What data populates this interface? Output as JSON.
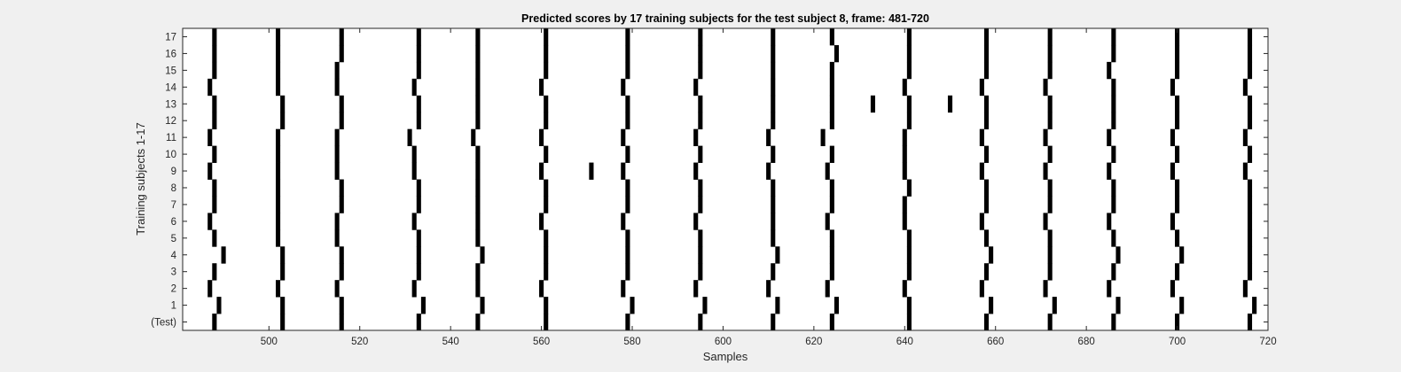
{
  "chart_data": {
    "type": "heatmap",
    "title": "Predicted scores by 17 training subjects for the test subject 8, frame: 481-720",
    "xlabel": "Samples",
    "ylabel": "Training subjects 1-17",
    "xlim": [
      481,
      720
    ],
    "x_ticks": [
      500,
      520,
      540,
      560,
      580,
      600,
      620,
      640,
      660,
      680,
      700,
      720
    ],
    "rows": [
      "(Test)",
      "1",
      "2",
      "3",
      "4",
      "5",
      "6",
      "7",
      "8",
      "9",
      "10",
      "11",
      "12",
      "13",
      "14",
      "15",
      "16",
      "17"
    ],
    "mark_color": "#000000",
    "background_color": "#ffffff",
    "grid": false,
    "marks": [
      {
        "row": 0,
        "x": [
          488,
          503,
          516,
          533,
          546,
          561,
          579,
          595,
          611,
          624,
          641,
          658,
          672,
          686,
          700,
          716
        ]
      },
      {
        "row": 1,
        "x": [
          489,
          503,
          516,
          534,
          547,
          561,
          580,
          596,
          612,
          625,
          641,
          659,
          673,
          687,
          701,
          717
        ]
      },
      {
        "row": 2,
        "x": [
          487,
          502,
          515,
          532,
          546,
          560,
          578,
          594,
          610,
          623,
          640,
          657,
          671,
          685,
          699,
          715
        ]
      },
      {
        "row": 3,
        "x": [
          488,
          503,
          516,
          533,
          546,
          561,
          579,
          595,
          611,
          624,
          641,
          658,
          672,
          686,
          700,
          716
        ]
      },
      {
        "row": 4,
        "x": [
          490,
          503,
          516,
          533,
          547,
          561,
          579,
          595,
          612,
          624,
          641,
          659,
          672,
          687,
          701,
          716
        ]
      },
      {
        "row": 5,
        "x": [
          488,
          502,
          515,
          533,
          546,
          561,
          579,
          595,
          611,
          624,
          641,
          658,
          672,
          686,
          700,
          716
        ]
      },
      {
        "row": 6,
        "x": [
          487,
          502,
          515,
          532,
          546,
          560,
          578,
          594,
          611,
          623,
          640,
          657,
          671,
          685,
          699,
          716
        ]
      },
      {
        "row": 7,
        "x": [
          488,
          502,
          516,
          533,
          546,
          561,
          579,
          595,
          611,
          624,
          640,
          658,
          672,
          686,
          700,
          716
        ]
      },
      {
        "row": 8,
        "x": [
          488,
          502,
          516,
          533,
          546,
          561,
          579,
          595,
          611,
          624,
          641,
          658,
          672,
          686,
          700,
          716
        ]
      },
      {
        "row": 9,
        "x": [
          487,
          502,
          515,
          532,
          546,
          560,
          571,
          578,
          594,
          610,
          623,
          640,
          657,
          671,
          685,
          699,
          715
        ]
      },
      {
        "row": 10,
        "x": [
          488,
          502,
          515,
          532,
          546,
          561,
          579,
          595,
          611,
          624,
          640,
          658,
          672,
          686,
          700,
          716
        ]
      },
      {
        "row": 11,
        "x": [
          487,
          502,
          515,
          531,
          545,
          560,
          578,
          594,
          610,
          622,
          640,
          657,
          671,
          685,
          699,
          715
        ]
      },
      {
        "row": 12,
        "x": [
          488,
          503,
          516,
          533,
          546,
          561,
          579,
          595,
          611,
          624,
          641,
          658,
          672,
          686,
          700,
          716
        ]
      },
      {
        "row": 13,
        "x": [
          488,
          503,
          516,
          533,
          546,
          561,
          579,
          595,
          611,
          624,
          633,
          641,
          650,
          658,
          672,
          686,
          700,
          716
        ]
      },
      {
        "row": 14,
        "x": [
          487,
          502,
          515,
          532,
          546,
          560,
          578,
          594,
          611,
          624,
          640,
          657,
          671,
          686,
          699,
          715
        ]
      },
      {
        "row": 15,
        "x": [
          488,
          502,
          515,
          533,
          546,
          561,
          579,
          595,
          611,
          624,
          641,
          658,
          672,
          685,
          700,
          716
        ]
      },
      {
        "row": 16,
        "x": [
          488,
          502,
          516,
          533,
          546,
          561,
          579,
          595,
          611,
          625,
          641,
          658,
          672,
          686,
          700,
          716
        ]
      },
      {
        "row": 17,
        "x": [
          488,
          502,
          516,
          533,
          546,
          561,
          579,
          595,
          611,
          624,
          641,
          658,
          672,
          686,
          700,
          716
        ]
      }
    ]
  }
}
